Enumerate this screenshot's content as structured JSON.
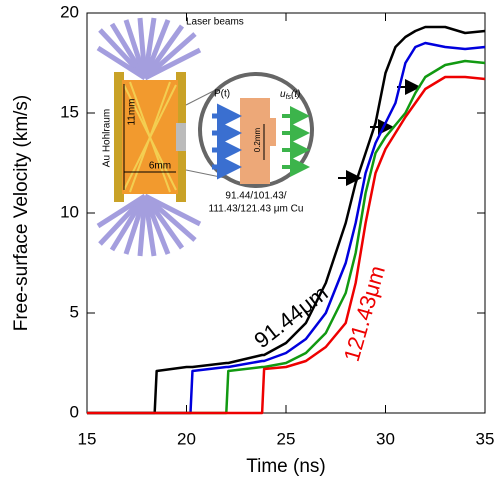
{
  "chart_data": {
    "type": "line",
    "x_label": "Time (ns)",
    "y_label": "Free-surface Velocity (km/s)",
    "xlim": [
      15,
      35
    ],
    "ylim": [
      0,
      20
    ],
    "xticks": [
      15,
      20,
      25,
      30,
      35
    ],
    "yticks": [
      0,
      5,
      10,
      15,
      20
    ],
    "x": [
      15,
      18.4,
      18.5,
      20,
      20.2,
      20.3,
      22,
      22.1,
      23.8,
      23.9,
      25,
      26,
      27,
      28,
      28.5,
      29,
      29.5,
      30,
      30.5,
      31,
      31.5,
      32,
      33,
      34,
      35
    ],
    "series": [
      {
        "name": "91.44μm",
        "color": "#000000",
        "values": [
          0,
          0,
          2.1,
          2.3,
          2.3,
          2.3,
          2.5,
          2.5,
          2.9,
          2.9,
          3.5,
          4.5,
          6.5,
          9.5,
          11.5,
          13,
          14.5,
          17,
          18.3,
          18.8,
          19.1,
          19.3,
          19.3,
          19.0,
          19.1
        ]
      },
      {
        "color": "#0000dd",
        "values": [
          0,
          0,
          0,
          0,
          0,
          2.1,
          2.3,
          2.3,
          2.6,
          2.6,
          3.0,
          3.7,
          5.0,
          7.5,
          9.5,
          12,
          13.5,
          14.5,
          15.5,
          17.5,
          18.3,
          18.5,
          18.3,
          18.2,
          18.3
        ]
      },
      {
        "color": "#119911",
        "values": [
          0,
          0,
          0,
          0,
          0,
          0,
          0,
          2.1,
          2.3,
          2.3,
          2.5,
          3.0,
          4.0,
          6.0,
          8.0,
          11,
          13,
          13.8,
          14.4,
          15,
          16,
          16.8,
          17.4,
          17.6,
          17.5
        ]
      },
      {
        "name": "121.43μm",
        "color": "#ee0000",
        "values": [
          0,
          0,
          0,
          0,
          0,
          0,
          0,
          0,
          0,
          2.2,
          2.3,
          2.6,
          3.3,
          4.5,
          6.5,
          9.5,
          12,
          13.2,
          14,
          14.8,
          15.5,
          16.2,
          16.8,
          16.8,
          16.7
        ]
      }
    ]
  },
  "inset": {
    "laser": "Laser beams",
    "hohlraum": "Au Hohlraum",
    "height": "11mm",
    "width": "6mm",
    "pressure": "P(t)",
    "velocity": "u",
    "velocity_sub": "fs",
    "velocity_arg": "(t)",
    "thickness": "0.2mm",
    "caption_line1": "91.44/101.43/",
    "caption_line2": "111.43/121.43 μm Cu"
  }
}
